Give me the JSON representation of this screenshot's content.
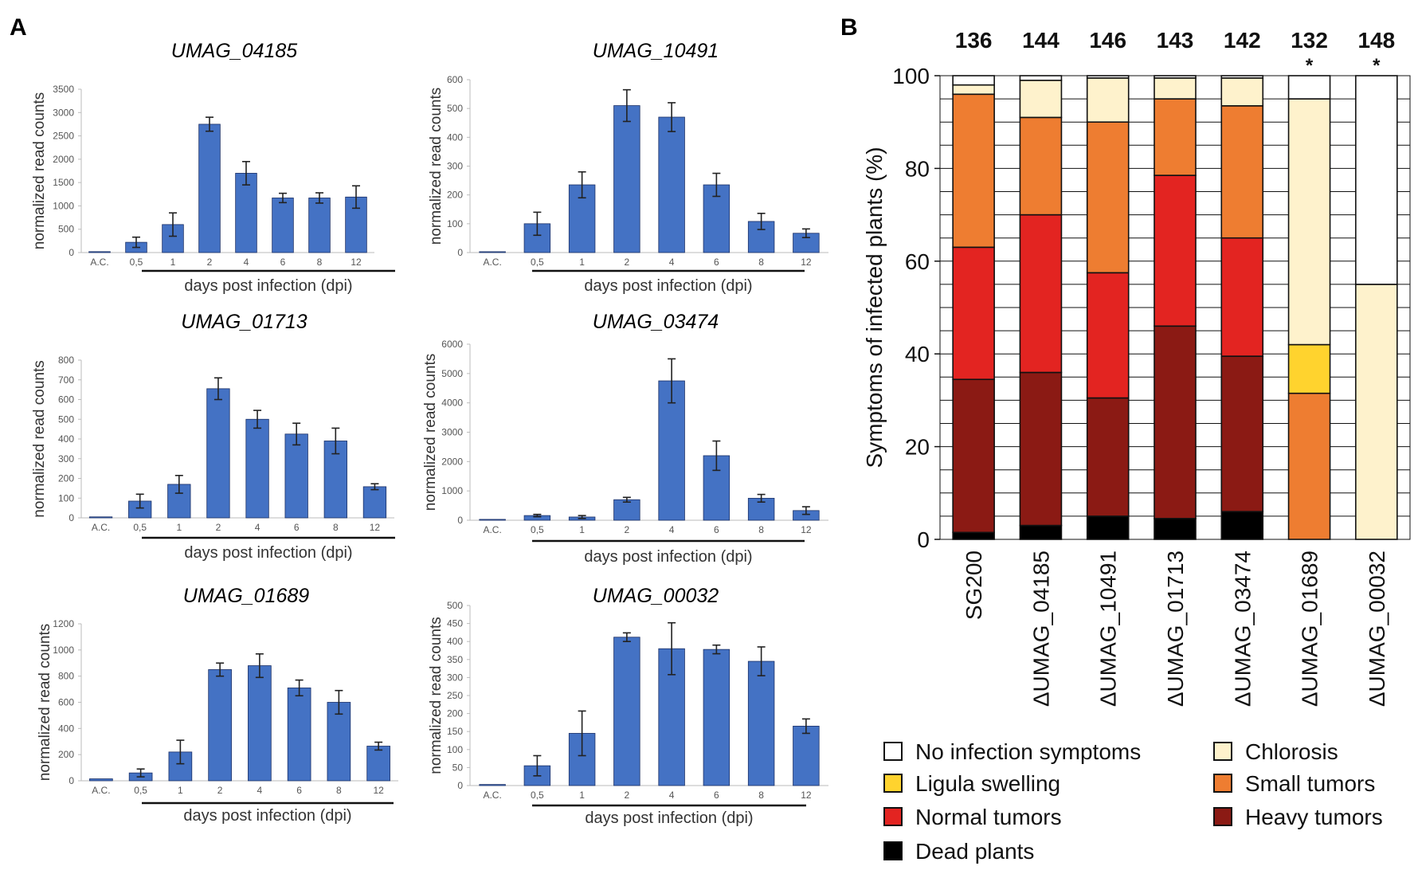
{
  "panel_labels": {
    "a": "A",
    "b": "B"
  },
  "colors": {
    "bar_blue": "#4472C4",
    "no_infection": "#FFFFFF",
    "chlorosis": "#FEF2CC",
    "ligula": "#FFD32E",
    "small_tumors": "#EE7D31",
    "normal_tumors": "#E32421",
    "heavy_tumors": "#8B1A14",
    "dead": "#000000"
  },
  "chart_data": [
    {
      "type": "bar",
      "title": "UMAG_04185",
      "ylabel": "normalized read counts",
      "xlabel": "days post infection (dpi)",
      "categories": [
        "A.C.",
        "0,5",
        "1",
        "2",
        "4",
        "6",
        "8",
        "12"
      ],
      "values": [
        20,
        220,
        600,
        2750,
        1700,
        1170,
        1170,
        1190
      ],
      "errors": [
        0,
        110,
        250,
        150,
        250,
        100,
        110,
        240
      ],
      "ylim": [
        0,
        3500
      ],
      "yticks": [
        "0",
        "500",
        "1000",
        "1500",
        "2000",
        "2500",
        "3000",
        "3500"
      ]
    },
    {
      "type": "bar",
      "title": "UMAG_10491",
      "ylabel": "normalized read counts",
      "xlabel": "days post infection (dpi)",
      "categories": [
        "A.C.",
        "0,5",
        "1",
        "2",
        "4",
        "6",
        "8",
        "12"
      ],
      "values": [
        3,
        100,
        235,
        510,
        470,
        235,
        108,
        67
      ],
      "errors": [
        0,
        40,
        45,
        55,
        50,
        40,
        28,
        15
      ],
      "ylim": [
        0,
        600
      ],
      "yticks": [
        "0",
        "100",
        "200",
        "300",
        "400",
        "500",
        "600"
      ]
    },
    {
      "type": "bar",
      "title": "UMAG_01713",
      "ylabel": "normalized read counts",
      "xlabel": "days post infection (dpi)",
      "categories": [
        "A.C.",
        "0,5",
        "1",
        "2",
        "4",
        "6",
        "8",
        "12"
      ],
      "values": [
        5,
        85,
        170,
        655,
        500,
        425,
        390,
        158
      ],
      "errors": [
        0,
        35,
        45,
        55,
        45,
        55,
        65,
        15
      ],
      "ylim": [
        0,
        800
      ],
      "yticks": [
        "0",
        "100",
        "200",
        "300",
        "400",
        "500",
        "600",
        "700",
        "800"
      ]
    },
    {
      "type": "bar",
      "title": "UMAG_03474",
      "ylabel": "normalized read counts",
      "xlabel": "days post infection (dpi)",
      "categories": [
        "A.C.",
        "0,5",
        "1",
        "2",
        "4",
        "6",
        "8",
        "12"
      ],
      "values": [
        30,
        160,
        110,
        700,
        4750,
        2200,
        750,
        330
      ],
      "errors": [
        0,
        40,
        50,
        80,
        750,
        500,
        130,
        130
      ],
      "ylim": [
        0,
        6000
      ],
      "yticks": [
        "0",
        "1000",
        "2000",
        "3000",
        "4000",
        "5000",
        "6000"
      ]
    },
    {
      "type": "bar",
      "title": "UMAG_01689",
      "ylabel": "normalized read counts",
      "xlabel": "days post infection (dpi)",
      "categories": [
        "A.C.",
        "0,5",
        "1",
        "2",
        "4",
        "6",
        "8",
        "12"
      ],
      "values": [
        15,
        60,
        220,
        850,
        880,
        710,
        600,
        265
      ],
      "errors": [
        0,
        30,
        90,
        50,
        90,
        60,
        90,
        30
      ],
      "ylim": [
        0,
        1200
      ],
      "yticks": [
        "0",
        "200",
        "400",
        "600",
        "800",
        "1000",
        "1200"
      ]
    },
    {
      "type": "bar",
      "title": "UMAG_00032",
      "ylabel": "normalized read counts",
      "xlabel": "days post infection (dpi)",
      "categories": [
        "A.C.",
        "0,5",
        "1",
        "2",
        "4",
        "6",
        "8",
        "12"
      ],
      "values": [
        3,
        55,
        145,
        412,
        380,
        378,
        345,
        165
      ],
      "errors": [
        0,
        28,
        62,
        12,
        72,
        12,
        40,
        20
      ],
      "ylim": [
        0,
        500
      ],
      "yticks": [
        "0",
        "50",
        "100",
        "150",
        "200",
        "250",
        "300",
        "350",
        "400",
        "450",
        "500"
      ]
    },
    {
      "type": "stacked_bar",
      "ylabel": "Symptoms of infected plants (%)",
      "ylim": [
        0,
        100
      ],
      "yticks": [
        "0",
        "20",
        "40",
        "60",
        "80",
        "100"
      ],
      "categories": [
        "SG200",
        "ΔUMAG_04185",
        "ΔUMAG_10491",
        "ΔUMAG_01713",
        "ΔUMAG_03474",
        "ΔUMAG_01689",
        "ΔUMAG_00032"
      ],
      "counts": [
        "136",
        "144",
        "146",
        "143",
        "142",
        "132",
        "148"
      ],
      "significance": [
        "",
        "",
        "",
        "",
        "",
        "*",
        "*"
      ],
      "series": [
        {
          "name": "Dead plants",
          "key": "dead",
          "values": [
            1.5,
            3,
            5,
            4.5,
            6,
            0,
            0
          ]
        },
        {
          "name": "Heavy tumors",
          "key": "heavy_tumors",
          "values": [
            33,
            33,
            25.5,
            41.5,
            33.5,
            0,
            0
          ]
        },
        {
          "name": "Normal tumors",
          "key": "normal_tumors",
          "values": [
            28.5,
            34,
            27,
            32.5,
            25.5,
            0,
            0
          ]
        },
        {
          "name": "Small tumors",
          "key": "small_tumors",
          "values": [
            33,
            21,
            32.5,
            16.5,
            28.5,
            31.5,
            0
          ]
        },
        {
          "name": "Ligula swelling",
          "key": "ligula",
          "values": [
            0,
            0,
            0,
            0,
            0,
            10.5,
            0
          ]
        },
        {
          "name": "Chlorosis",
          "key": "chlorosis",
          "values": [
            2,
            8,
            9.5,
            4.5,
            6,
            53,
            55
          ]
        },
        {
          "name": "No infection symptoms",
          "key": "no_infection",
          "values": [
            2,
            1,
            0.5,
            0.5,
            0.5,
            5,
            45
          ]
        }
      ],
      "legend_order": [
        "No infection symptoms",
        "Chlorosis",
        "Ligula swelling",
        "Small tumors",
        "Normal tumors",
        "Heavy tumors",
        "Dead plants"
      ]
    }
  ]
}
